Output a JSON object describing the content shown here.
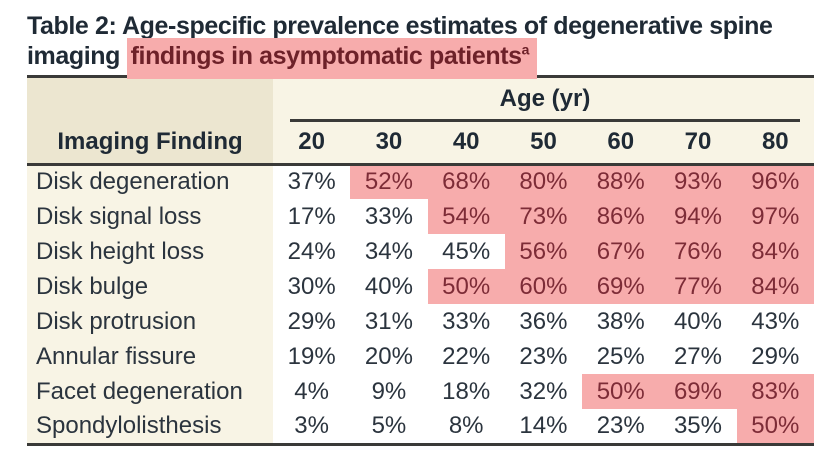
{
  "title": {
    "line1": "Table 2: Age-specific prevalence estimates of degenerative spine",
    "line2_prefix": "imaging",
    "line2_highlight": "findings in asymptomatic patients",
    "superscript": "a"
  },
  "table": {
    "col_group_header": "Age (yr)",
    "row_header": "Imaging Finding",
    "age_columns": [
      "20",
      "30",
      "40",
      "50",
      "60",
      "70",
      "80"
    ],
    "rows": [
      {
        "label": "Disk degeneration",
        "values": [
          "37%",
          "52%",
          "68%",
          "80%",
          "88%",
          "93%",
          "96%"
        ],
        "highlight_from": 1
      },
      {
        "label": "Disk signal loss",
        "values": [
          "17%",
          "33%",
          "54%",
          "73%",
          "86%",
          "94%",
          "97%"
        ],
        "highlight_from": 2
      },
      {
        "label": "Disk height loss",
        "values": [
          "24%",
          "34%",
          "45%",
          "56%",
          "67%",
          "76%",
          "84%"
        ],
        "highlight_from": 3
      },
      {
        "label": "Disk bulge",
        "values": [
          "30%",
          "40%",
          "50%",
          "60%",
          "69%",
          "77%",
          "84%"
        ],
        "highlight_from": 2
      },
      {
        "label": "Disk protrusion",
        "values": [
          "29%",
          "31%",
          "33%",
          "36%",
          "38%",
          "40%",
          "43%"
        ],
        "highlight_from": -1
      },
      {
        "label": "Annular fissure",
        "values": [
          "19%",
          "20%",
          "22%",
          "23%",
          "25%",
          "27%",
          "29%"
        ],
        "highlight_from": -1
      },
      {
        "label": "Facet degeneration",
        "values": [
          "4%",
          "9%",
          "18%",
          "32%",
          "50%",
          "69%",
          "83%"
        ],
        "highlight_from": 4
      },
      {
        "label": "Spondylolisthesis",
        "values": [
          "3%",
          "5%",
          "8%",
          "14%",
          "23%",
          "35%",
          "50%"
        ],
        "highlight_from": 6
      }
    ]
  },
  "colors": {
    "highlight_pink": "#f7acac",
    "title_highlight_text": "#6d2129",
    "cell_highlight_text": "#7d2c37",
    "header_left_bg": "#ece6d0",
    "cream_bg": "#f8f4e5",
    "body_text": "#2b343e",
    "title_text": "#1f2a35",
    "rule_color": "#3a3a38"
  }
}
